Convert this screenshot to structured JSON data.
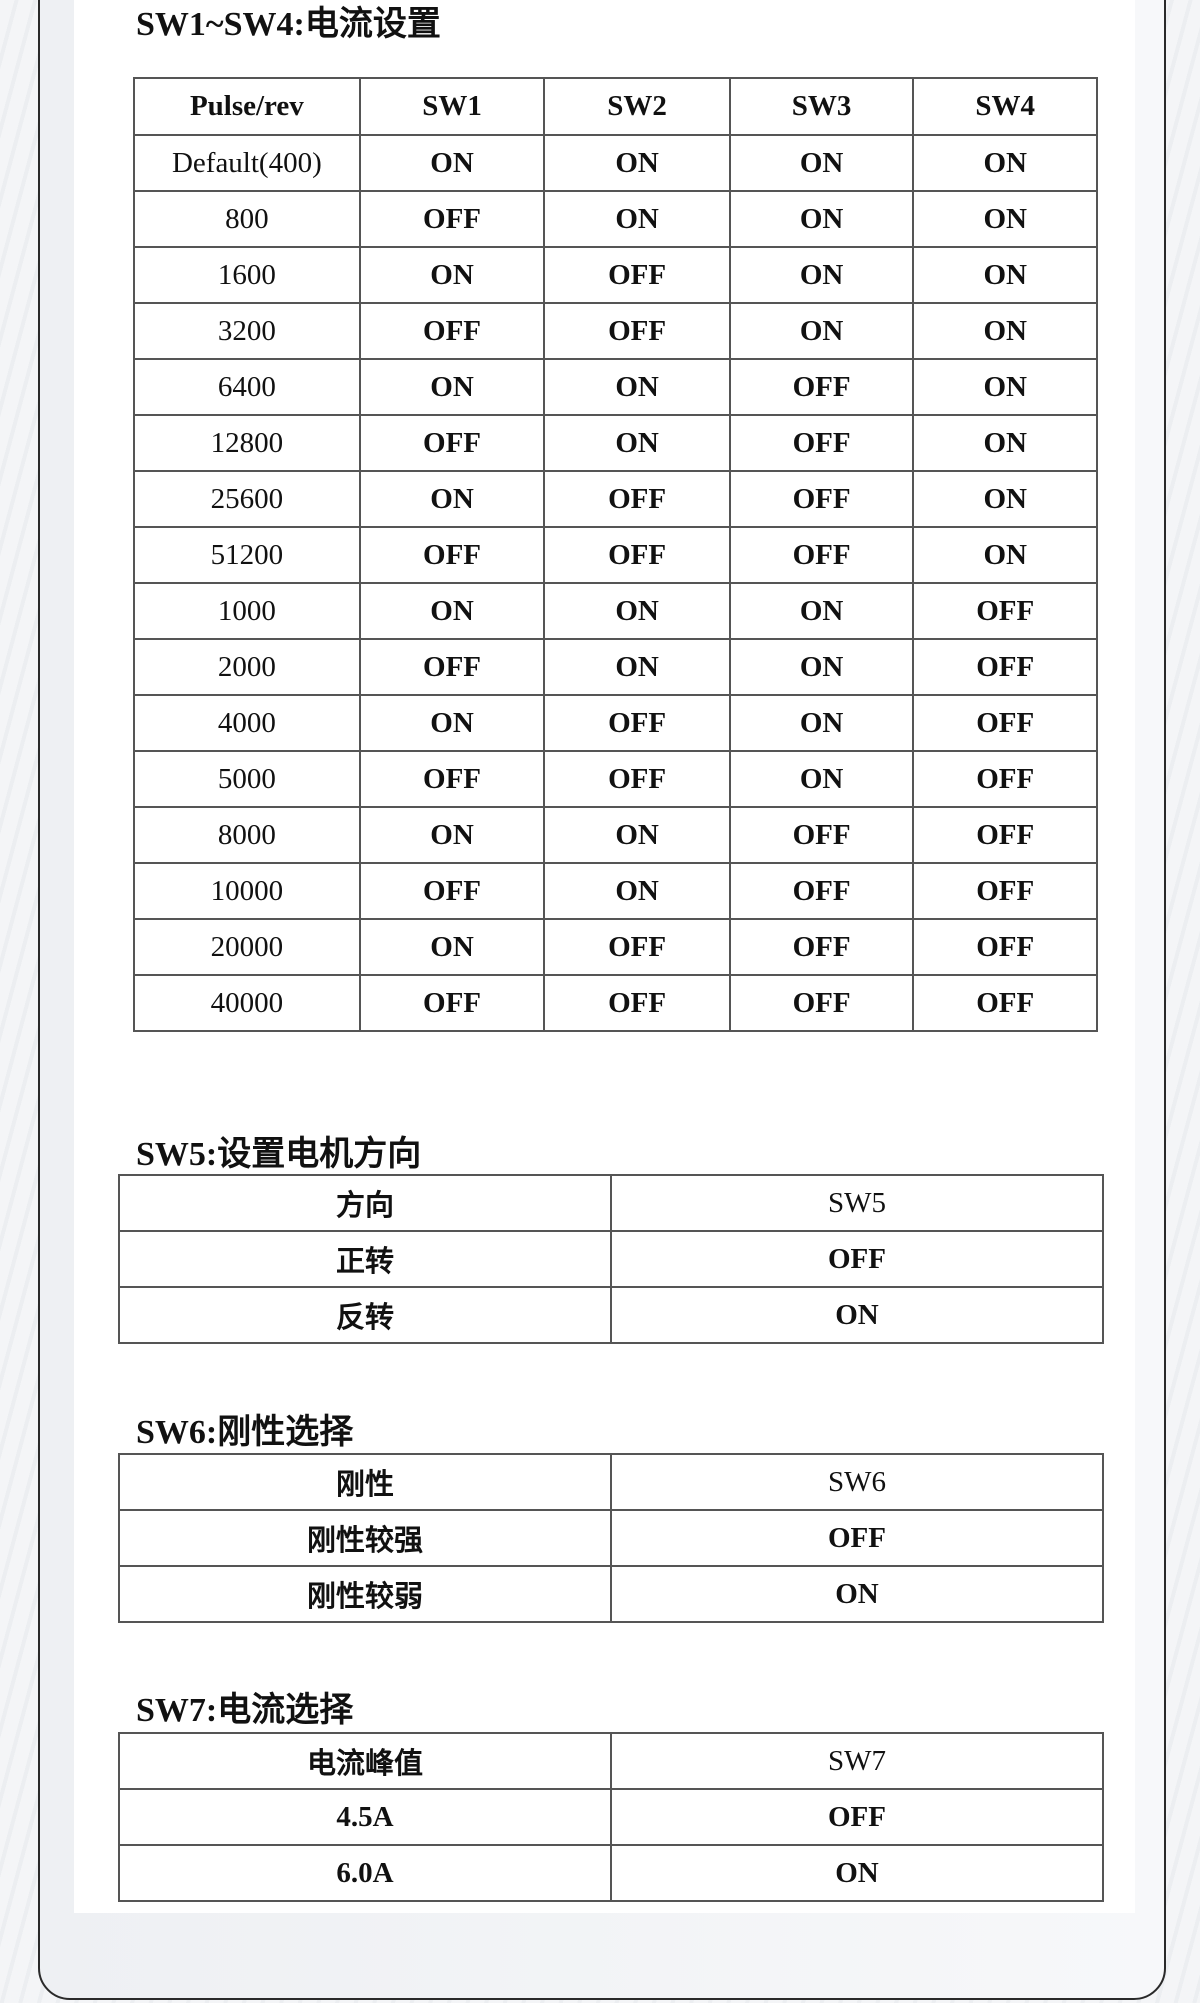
{
  "section1": {
    "title": "SW1~SW4:电流设置",
    "headers": [
      "Pulse/rev",
      "SW1",
      "SW2",
      "SW3",
      "SW4"
    ],
    "rows": [
      [
        "Default(400)",
        "ON",
        "ON",
        "ON",
        "ON"
      ],
      [
        "800",
        "OFF",
        "ON",
        "ON",
        "ON"
      ],
      [
        "1600",
        "ON",
        "OFF",
        "ON",
        "ON"
      ],
      [
        "3200",
        "OFF",
        "OFF",
        "ON",
        "ON"
      ],
      [
        "6400",
        "ON",
        "ON",
        "OFF",
        "ON"
      ],
      [
        "12800",
        "OFF",
        "ON",
        "OFF",
        "ON"
      ],
      [
        "25600",
        "ON",
        "OFF",
        "OFF",
        "ON"
      ],
      [
        "51200",
        "OFF",
        "OFF",
        "OFF",
        "ON"
      ],
      [
        "1000",
        "ON",
        "ON",
        "ON",
        "OFF"
      ],
      [
        "2000",
        "OFF",
        "ON",
        "ON",
        "OFF"
      ],
      [
        "4000",
        "ON",
        "OFF",
        "ON",
        "OFF"
      ],
      [
        "5000",
        "OFF",
        "OFF",
        "ON",
        "OFF"
      ],
      [
        "8000",
        "ON",
        "ON",
        "OFF",
        "OFF"
      ],
      [
        "10000",
        "OFF",
        "ON",
        "OFF",
        "OFF"
      ],
      [
        "20000",
        "ON",
        "OFF",
        "OFF",
        "OFF"
      ],
      [
        "40000",
        "OFF",
        "OFF",
        "OFF",
        "OFF"
      ]
    ]
  },
  "section2": {
    "title": "SW5:设置电机方向",
    "rows": [
      [
        "方向",
        "SW5"
      ],
      [
        "正转",
        "OFF"
      ],
      [
        "反转",
        "ON"
      ]
    ]
  },
  "section3": {
    "title": "SW6:刚性选择",
    "rows": [
      [
        "刚性",
        "SW6"
      ],
      [
        "刚性较强",
        "OFF"
      ],
      [
        "刚性较弱",
        "ON"
      ]
    ]
  },
  "section4": {
    "title": "SW7:电流选择",
    "rows": [
      [
        "电流峰值",
        "SW7"
      ],
      [
        "4.5A",
        "OFF"
      ],
      [
        "6.0A",
        "ON"
      ]
    ]
  }
}
